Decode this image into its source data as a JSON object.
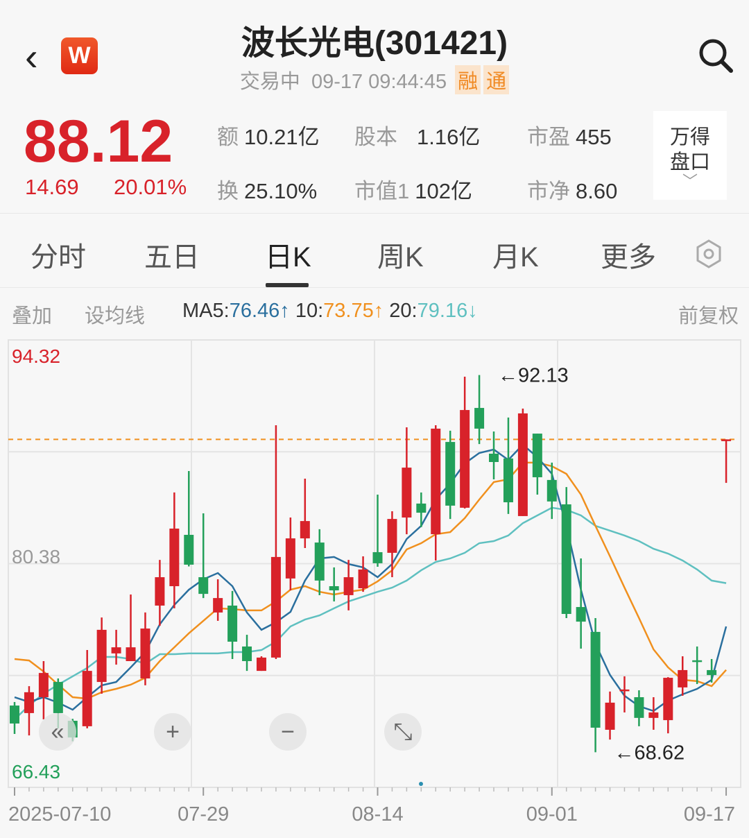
{
  "header": {
    "back_icon": "chevron-left-icon",
    "logo_text": "W",
    "title": "波长光电(301421)",
    "status": "交易中",
    "datetime": "09-17 09:44:45",
    "badges": [
      "融",
      "通"
    ],
    "search_icon": "search-icon"
  },
  "quote": {
    "price": "88.12",
    "change": "14.69",
    "change_pct": "20.01%",
    "stats": [
      {
        "label": "额",
        "value": "10.21亿"
      },
      {
        "label": "股本",
        "value": "1.16亿"
      },
      {
        "label": "市盈",
        "value": "455"
      },
      {
        "label": "换",
        "value": "25.10%"
      },
      {
        "label": "市值1",
        "value": "102亿"
      },
      {
        "label": "市净",
        "value": "8.60"
      }
    ],
    "wind_button": {
      "line1": "万得",
      "line2": "盘口",
      "chevron": "﹀"
    }
  },
  "tabs": [
    {
      "label": "分时",
      "active": false
    },
    {
      "label": "五日",
      "active": false
    },
    {
      "label": "日K",
      "active": true
    },
    {
      "label": "周K",
      "active": false
    },
    {
      "label": "月K",
      "active": false
    },
    {
      "label": "更多",
      "active": false
    }
  ],
  "toolbar": {
    "overlay": "叠加",
    "set_ma": "设均线",
    "ma5_label": "MA5:",
    "ma5_value": "76.46",
    "ma5_arrow": "↑",
    "ma10_label": "10:",
    "ma10_value": "73.75",
    "ma10_arrow": "↑",
    "ma20_label": "20:",
    "ma20_value": "79.16",
    "ma20_arrow": "↓",
    "adjust": "前复权"
  },
  "colors": {
    "up": "#d8222a",
    "down": "#23a05a",
    "ma5": "#2a6f9e",
    "ma10": "#f0901e",
    "ma20": "#5fc0c0",
    "last_price_line": "#f0901e"
  },
  "controls": [
    {
      "name": "scroll-left-button",
      "glyph": "«"
    },
    {
      "name": "zoom-in-button",
      "glyph": "+"
    },
    {
      "name": "zoom-out-button",
      "glyph": "−"
    },
    {
      "name": "fullscreen-button",
      "glyph": "⤡"
    }
  ],
  "chart_data": {
    "type": "candlestick",
    "ylim": [
      66.43,
      94.32
    ],
    "y_tick_labels": [
      "94.32",
      "80.38",
      "66.43"
    ],
    "x_tick_labels": [
      {
        "label": "2025-07-10",
        "index": 0
      },
      {
        "label": "07-29",
        "index": 13
      },
      {
        "label": "08-14",
        "index": 25
      },
      {
        "label": "09-01",
        "index": 37
      },
      {
        "label": "09-17",
        "index": 49
      }
    ],
    "last_price": 88.12,
    "annotations": [
      {
        "text": "92.13",
        "index": 33,
        "value": 92.13
      },
      {
        "text": "68.62",
        "index": 41,
        "value": 68.62
      }
    ],
    "ohlc": [
      [
        71.53,
        71.75,
        69.76,
        70.41
      ],
      [
        71.06,
        72.74,
        69.67,
        72.36
      ],
      [
        72.05,
        74.3,
        70.67,
        73.56
      ],
      [
        73.0,
        73.22,
        70.11,
        71.06
      ],
      [
        70.58,
        70.7,
        69.3,
        69.54
      ],
      [
        70.24,
        74.99,
        70.11,
        73.69
      ],
      [
        73.0,
        77.02,
        72.27,
        76.25
      ],
      [
        74.78,
        76.25,
        74.08,
        75.16
      ],
      [
        74.3,
        78.45,
        74.3,
        75.16
      ],
      [
        73.22,
        77.33,
        72.79,
        76.33
      ],
      [
        77.76,
        80.61,
        76.5,
        79.53
      ],
      [
        78.97,
        84.81,
        77.59,
        82.56
      ],
      [
        82.17,
        86.15,
        80.2,
        80.31
      ],
      [
        79.53,
        83.51,
        78.23,
        78.49
      ],
      [
        77.33,
        79.4,
        76.81,
        78.23
      ],
      [
        77.76,
        78.67,
        74.43,
        75.51
      ],
      [
        75.21,
        75.94,
        73.69,
        74.3
      ],
      [
        73.69,
        74.6,
        73.69,
        74.52
      ],
      [
        74.52,
        89.0,
        74.43,
        80.79
      ],
      [
        79.45,
        83.25,
        78.71,
        81.95
      ],
      [
        81.95,
        85.67,
        81.35,
        83.03
      ],
      [
        81.69,
        82.52,
        78.41,
        79.32
      ],
      [
        78.97,
        80.14,
        78.02,
        78.71
      ],
      [
        78.41,
        80.61,
        77.46,
        79.53
      ],
      [
        78.84,
        80.83,
        78.62,
        80.01
      ],
      [
        81.09,
        84.68,
        80.18,
        80.4
      ],
      [
        81.05,
        83.64,
        79.53,
        83.16
      ],
      [
        83.25,
        88.87,
        82.21,
        86.36
      ],
      [
        84.12,
        84.81,
        82.65,
        83.55
      ],
      [
        82.21,
        89.0,
        80.57,
        88.79
      ],
      [
        87.96,
        88.66,
        83.16,
        83.99
      ],
      [
        83.86,
        92.03,
        83.81,
        89.95
      ],
      [
        90.08,
        92.13,
        87.83,
        88.79
      ],
      [
        87.23,
        88.61,
        85.63,
        86.71
      ],
      [
        86.93,
        89.48,
        83.47,
        84.2
      ],
      [
        83.34,
        90.04,
        83.34,
        89.74
      ],
      [
        88.48,
        88.48,
        84.68,
        85.76
      ],
      [
        85.59,
        86.67,
        83.16,
        84.25
      ],
      [
        84.07,
        85.15,
        76.98,
        77.24
      ],
      [
        77.67,
        80.7,
        75.08,
        76.76
      ],
      [
        76.12,
        76.98,
        68.62,
        70.15
      ],
      [
        70.02,
        72.4,
        69.41,
        71.71
      ],
      [
        72.45,
        73.35,
        71.1,
        72.53
      ],
      [
        72.05,
        72.48,
        70.24,
        70.76
      ],
      [
        70.76,
        72.05,
        70.02,
        71.1
      ],
      [
        70.62,
        73.3,
        69.8,
        73.26
      ],
      [
        72.66,
        74.6,
        72.14,
        73.74
      ],
      [
        74.35,
        75.21,
        72.87,
        74.3
      ],
      [
        73.74,
        74.43,
        72.96,
        73.43
      ],
      [
        88.12,
        88.12,
        85.41,
        88.12
      ]
    ],
    "ma5": [
      72.05,
      71.75,
      72.05,
      71.71,
      71.27,
      72.05,
      72.79,
      73.0,
      73.91,
      74.86,
      76.59,
      77.8,
      78.75,
      79.4,
      79.79,
      78.97,
      77.33,
      76.25,
      76.72,
      77.37,
      79.32,
      80.7,
      80.79,
      80.35,
      80.14,
      79.53,
      80.35,
      81.91,
      82.73,
      84.37,
      85.37,
      86.62,
      87.27,
      87.49,
      86.84,
      87.79,
      87.01,
      85.97,
      82.73,
      78.75,
      75.38,
      73.44,
      72.14,
      71.49,
      71.19,
      71.84,
      72.23,
      72.57,
      73.13,
      76.46
    ],
    "ma10": [
      74.43,
      74.34,
      73.65,
      72.83,
      72.05,
      71.96,
      72.36,
      72.57,
      72.83,
      73.26,
      74.3,
      75.16,
      76.03,
      76.81,
      77.59,
      77.54,
      77.46,
      77.46,
      78.02,
      78.75,
      78.97,
      78.62,
      78.45,
      78.62,
      78.75,
      79.27,
      79.96,
      81.26,
      81.65,
      82.21,
      82.34,
      83.21,
      84.37,
      85.46,
      85.63,
      86.67,
      86.67,
      86.45,
      85.97,
      84.68,
      82.73,
      80.83,
      78.88,
      76.98,
      75.03,
      73.91,
      73.13,
      73.05,
      72.74,
      73.75
    ],
    "ma20": [
      70.67,
      71.53,
      72.27,
      72.83,
      73.35,
      73.87,
      74.56,
      74.56,
      74.43,
      74.13,
      74.73,
      74.73,
      74.78,
      74.78,
      74.78,
      74.86,
      74.86,
      74.99,
      75.51,
      76.46,
      76.89,
      77.15,
      77.59,
      78.02,
      78.32,
      78.62,
      78.88,
      79.32,
      79.96,
      80.48,
      80.7,
      81.05,
      81.65,
      81.78,
      82.13,
      82.9,
      83.38,
      83.86,
      83.73,
      83.38,
      82.73,
      82.43,
      82.13,
      81.78,
      81.3,
      81.0,
      80.57,
      80.01,
      79.32,
      79.16
    ]
  }
}
